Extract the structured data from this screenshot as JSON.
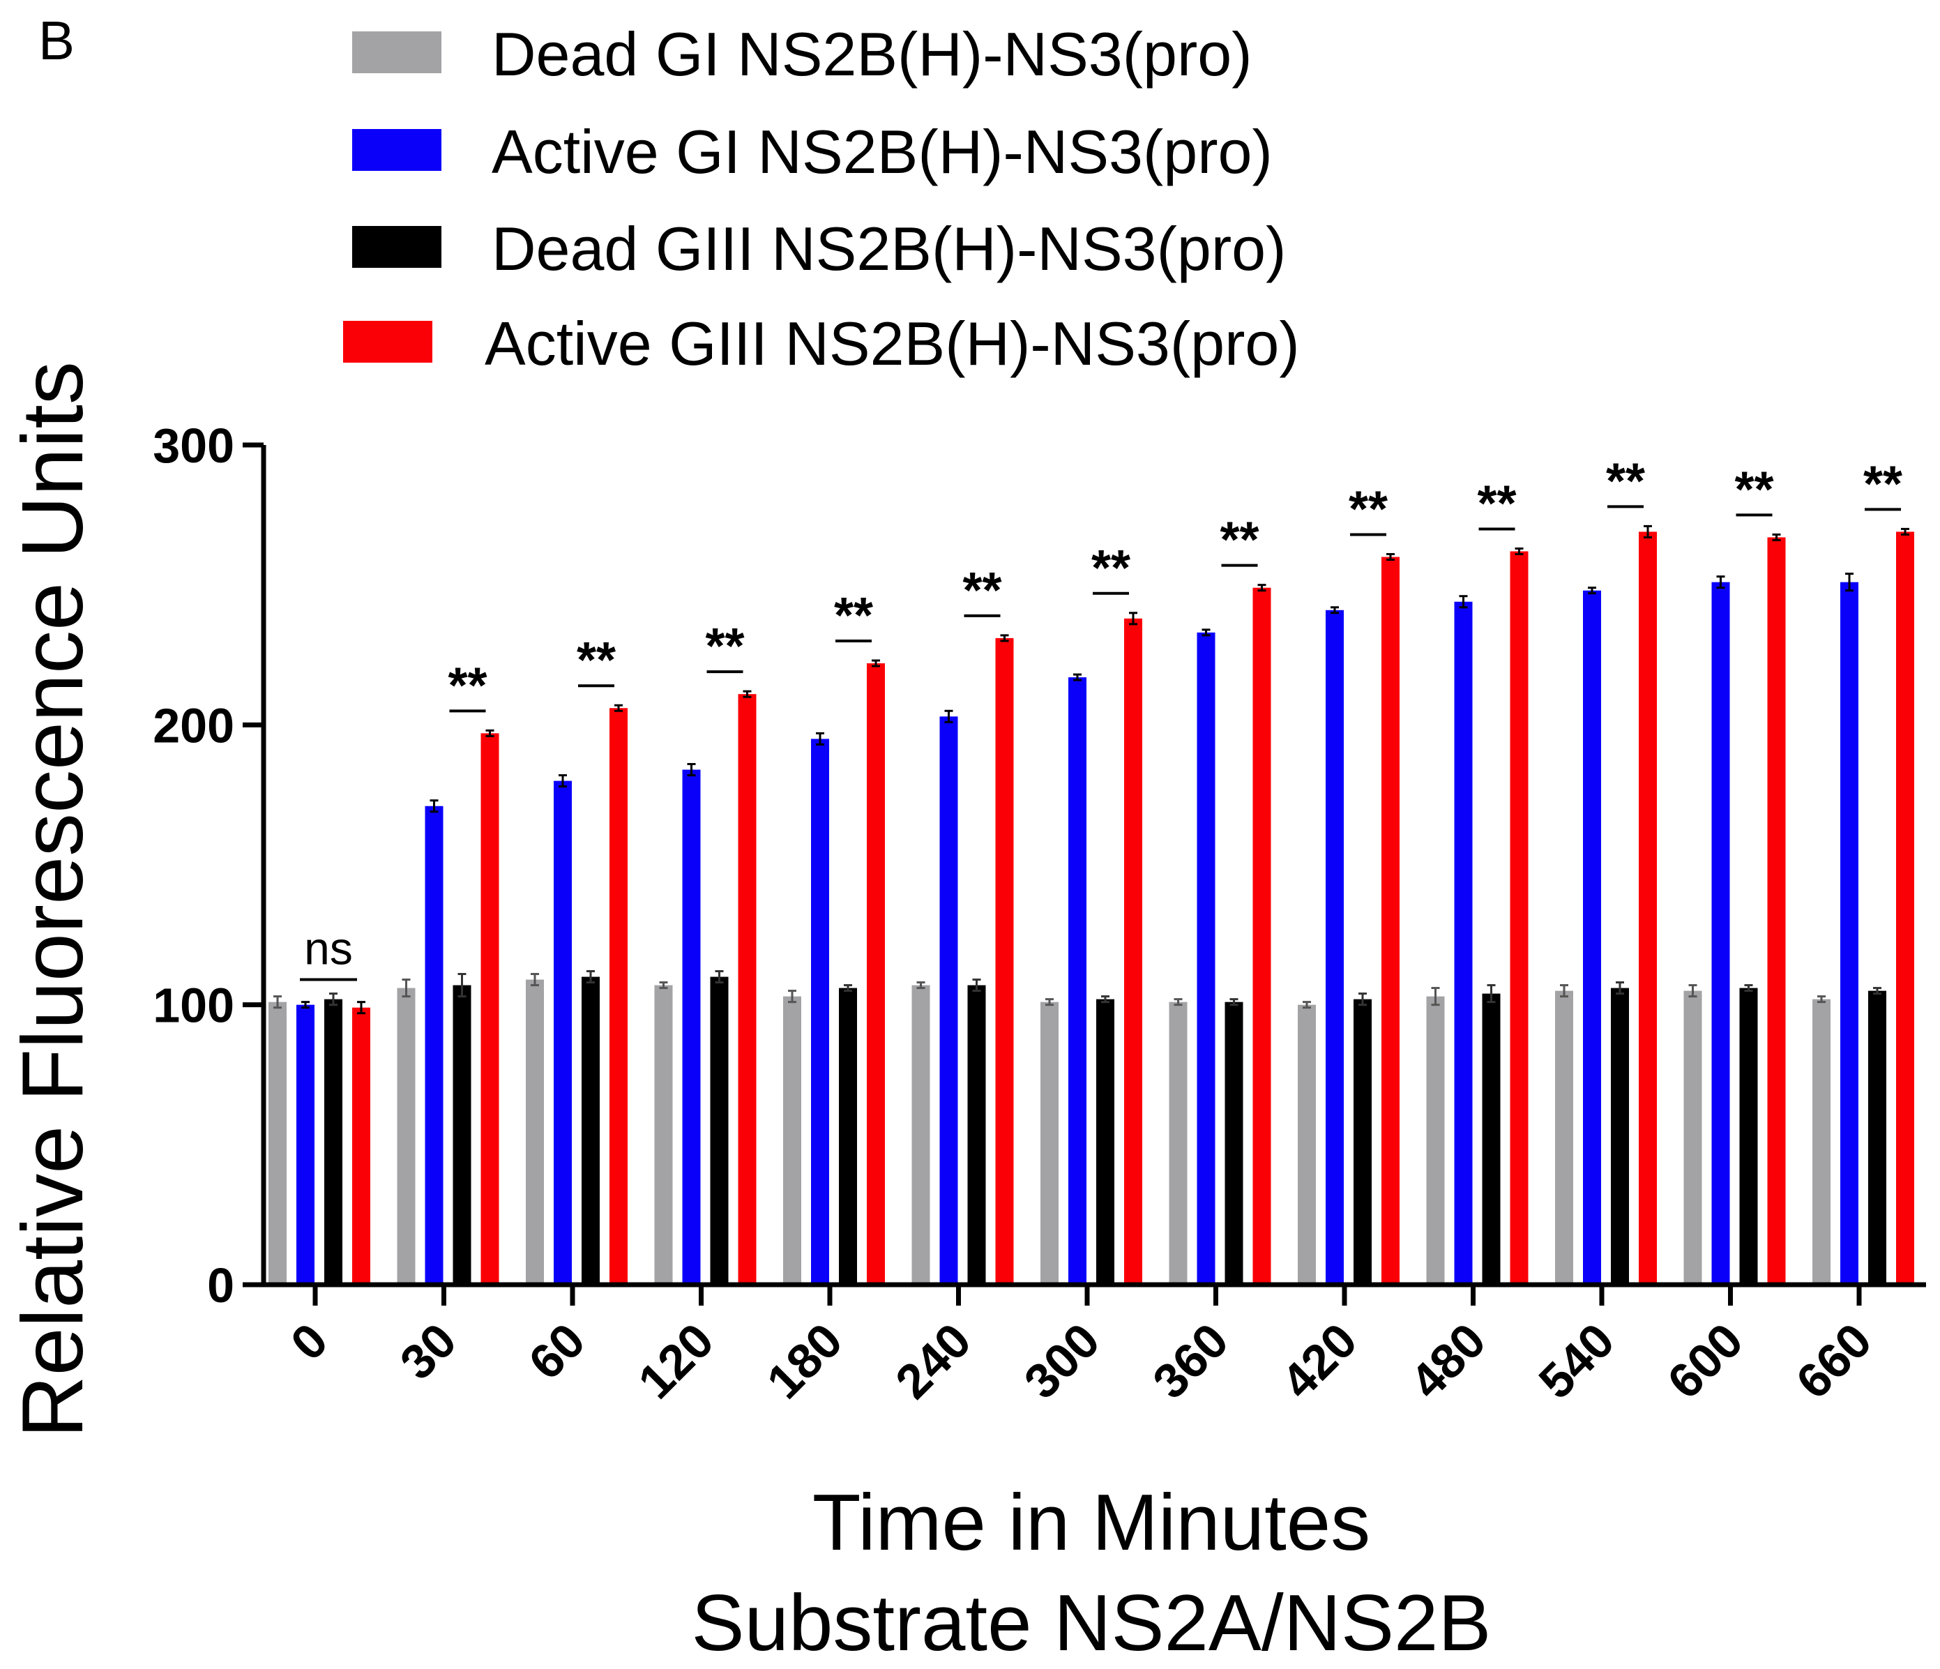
{
  "panel_label": "B",
  "colors": {
    "dead_gi": "#A3A3A6",
    "active_gi": "#0A00FA",
    "dead_giii": "#000000",
    "active_giii": "#FA0006"
  },
  "chart_data": {
    "type": "bar",
    "title": "",
    "xlabel": "Time in Minutes",
    "xlabel_line2": "Substrate NS2A/NS2B",
    "ylabel": "Relative Fluorescence Units",
    "ylim": [
      0,
      300
    ],
    "yticks": [
      0,
      100,
      200,
      300
    ],
    "ytick_labels": [
      "0",
      "100",
      "200",
      "300"
    ],
    "categories": [
      "0",
      "30",
      "60",
      "120",
      "180",
      "240",
      "300",
      "360",
      "420",
      "480",
      "540",
      "600",
      "660"
    ],
    "legend_position": "top",
    "series": [
      {
        "name": "Dead GI NS2B(H)-NS3(pro)",
        "color": "#A3A3A6",
        "values": [
          101,
          106,
          109,
          107,
          103,
          107,
          101,
          101,
          100,
          103,
          105,
          105,
          102
        ],
        "errors": [
          2,
          3,
          2,
          1,
          2,
          1,
          1,
          1,
          1,
          3,
          2,
          2,
          1
        ]
      },
      {
        "name": "Active GI NS2B(H)-NS3(pro)",
        "color": "#0A00FA",
        "values": [
          100,
          171,
          180,
          184,
          195,
          203,
          217,
          233,
          241,
          244,
          248,
          251,
          251
        ],
        "errors": [
          1,
          2,
          2,
          2,
          2,
          2,
          1,
          1,
          1,
          2,
          1,
          2,
          3
        ]
      },
      {
        "name": "Dead GIII NS2B(H)-NS3(pro)",
        "color": "#000000",
        "values": [
          102,
          107,
          110,
          110,
          106,
          107,
          102,
          101,
          102,
          104,
          106,
          106,
          105
        ],
        "errors": [
          2,
          4,
          2,
          2,
          1,
          2,
          1,
          1,
          2,
          3,
          2,
          1,
          1
        ]
      },
      {
        "name": "Active GIII NS2B(H)-NS3(pro)",
        "color": "#FA0006",
        "values": [
          99,
          197,
          206,
          211,
          222,
          231,
          238,
          249,
          260,
          262,
          269,
          267,
          269
        ],
        "errors": [
          2,
          1,
          1,
          1,
          1,
          1,
          2,
          1,
          1,
          1,
          2,
          1,
          1
        ]
      }
    ],
    "significance": [
      "ns",
      "**",
      "**",
      "**",
      "**",
      "**",
      "**",
      "**",
      "**",
      "**",
      "**",
      "**",
      "**"
    ]
  }
}
